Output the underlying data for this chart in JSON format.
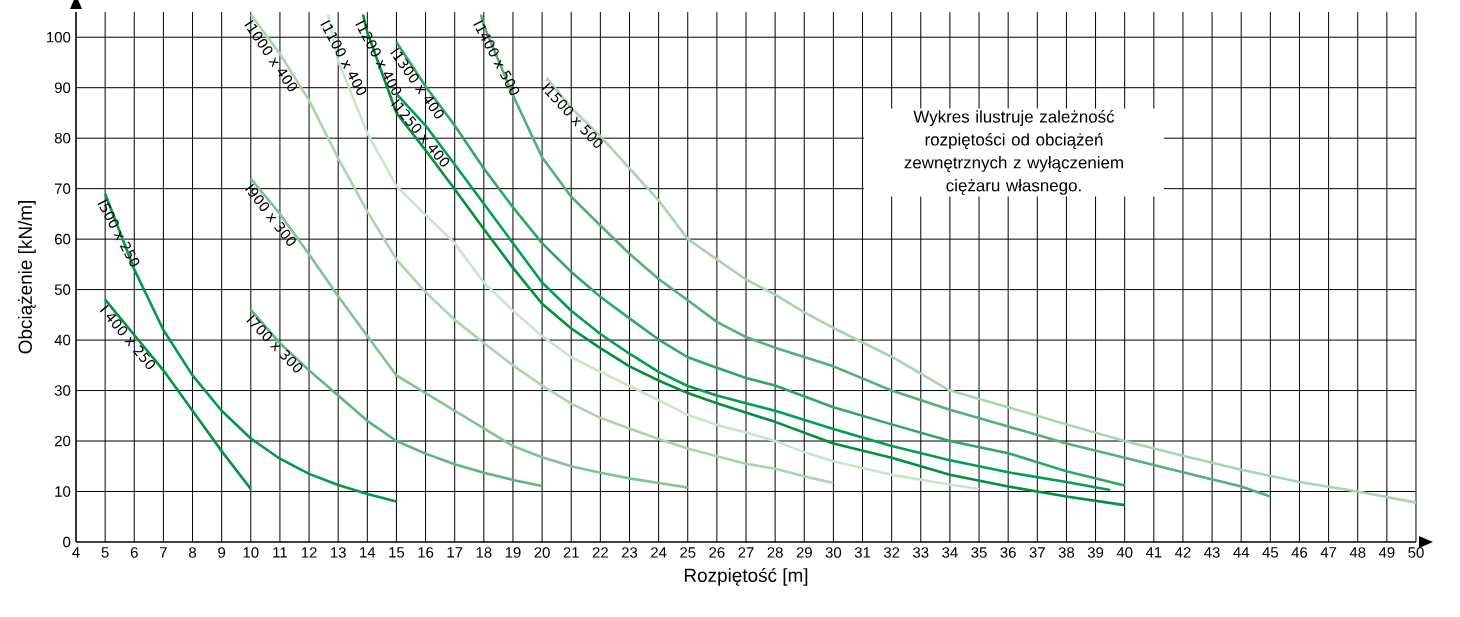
{
  "chart_data": {
    "type": "line",
    "xlabel": "Rozpiętość [m]",
    "ylabel": "Obciążenie [kN/m]",
    "xlim": [
      4,
      50
    ],
    "ylim": [
      0,
      105
    ],
    "xticks": [
      4,
      5,
      6,
      7,
      8,
      9,
      10,
      11,
      12,
      13,
      14,
      15,
      16,
      17,
      18,
      19,
      20,
      21,
      22,
      23,
      24,
      25,
      26,
      27,
      28,
      29,
      30,
      31,
      32,
      33,
      34,
      35,
      36,
      37,
      38,
      39,
      40,
      41,
      42,
      43,
      44,
      45,
      46,
      47,
      48,
      49,
      50
    ],
    "yticks": [
      0,
      10,
      20,
      30,
      40,
      50,
      60,
      70,
      80,
      90,
      100
    ],
    "grid": true,
    "annotations": [
      "Wykres ilustruje zależność rozpiętości od obciążeń zewnętrznych z wyłączeniem ciężaru własnego."
    ],
    "series": [
      {
        "name": "I 400 x 250",
        "color": "#00963f",
        "x": [
          5,
          6,
          7,
          8,
          9,
          10
        ],
        "values": [
          48,
          41,
          34,
          26,
          18,
          10.5
        ]
      },
      {
        "name": "I500 x 250",
        "color": "#009a48",
        "x": [
          5,
          6,
          7,
          8,
          9,
          10,
          11,
          12,
          13,
          14,
          15
        ],
        "values": [
          69,
          54,
          42,
          33,
          26,
          20.5,
          16.5,
          13.5,
          11.3,
          9.5,
          8
        ]
      },
      {
        "name": "I700 x 300",
        "color": "#5cb87a",
        "x": [
          10,
          11,
          12,
          13,
          14,
          15,
          16,
          17,
          18,
          19,
          20
        ],
        "values": [
          46,
          39.4,
          34,
          29,
          24,
          20,
          17.5,
          15.4,
          13.7,
          12.3,
          11.1
        ]
      },
      {
        "name": "I900 x 300",
        "color": "#7ec592",
        "x": [
          10,
          11,
          12,
          13,
          14,
          15,
          16,
          17,
          18,
          19,
          20,
          21,
          22,
          23,
          24,
          25
        ],
        "values": [
          72,
          65,
          57,
          48.7,
          40.8,
          33,
          29.5,
          26,
          22.5,
          19,
          16.8,
          15,
          13.7,
          12.6,
          11.7,
          10.8
        ]
      },
      {
        "name": "I1000 x 400",
        "color": "#a7d5b0",
        "x": [
          10,
          11,
          12,
          13,
          14,
          15,
          16,
          17,
          18,
          19,
          20,
          21,
          22,
          23,
          24,
          25,
          26,
          27,
          28,
          29,
          30
        ],
        "values": [
          104.5,
          96.7,
          87.5,
          76,
          65.5,
          56,
          49.5,
          44,
          39.4,
          35,
          31,
          27.4,
          24.6,
          22.5,
          20.4,
          18.5,
          17,
          15.5,
          14.5,
          13,
          11.7
        ]
      },
      {
        "name": "I1100 x 400",
        "color": "#c8e6cc",
        "x": [
          12.65,
          13,
          14,
          15,
          16,
          17,
          18,
          19,
          20,
          21,
          22,
          23,
          24,
          25,
          26,
          27,
          28,
          29,
          30,
          32,
          34,
          35
        ],
        "values": [
          104.5,
          95.3,
          81,
          70.5,
          64.8,
          59.2,
          51.4,
          45.8,
          40.8,
          36.6,
          33.7,
          30.9,
          28.1,
          25.2,
          23.2,
          21.7,
          20,
          17.8,
          16,
          13.3,
          11.4,
          10.5
        ]
      },
      {
        "name": "I1200 x 400",
        "color": "#00913c",
        "x": [
          13.85,
          14,
          15,
          16,
          17,
          18,
          19,
          20,
          21,
          22,
          23,
          24,
          25,
          26,
          28,
          30,
          32,
          34,
          36,
          38,
          40
        ],
        "values": [
          104.5,
          101,
          85,
          77.6,
          69.9,
          62,
          54.3,
          47.2,
          42.3,
          38.4,
          34.8,
          32,
          29.5,
          27.5,
          23.8,
          19.5,
          16.7,
          13.3,
          11,
          9,
          7.3
        ]
      },
      {
        "name": "I1250 x 400",
        "color": "#00a050",
        "x": [
          15,
          16,
          17,
          18,
          19,
          20,
          21,
          22,
          23,
          24,
          25,
          26,
          27,
          28,
          30,
          32,
          34,
          36,
          38,
          39.5
        ],
        "values": [
          88.8,
          82.5,
          74.8,
          67,
          59.2,
          51.4,
          45.8,
          41.2,
          37.3,
          33.7,
          30.9,
          29,
          27.5,
          26,
          22.4,
          19,
          16.2,
          13.8,
          11.9,
          10.3
        ]
      },
      {
        "name": "I1300 x 400",
        "color": "#2fa862",
        "x": [
          15,
          16,
          17,
          18,
          19,
          20,
          21,
          22,
          23,
          24,
          25,
          26,
          27,
          28,
          30,
          32,
          34,
          36,
          38,
          40
        ],
        "values": [
          99,
          90.3,
          82.5,
          74,
          66.3,
          59.2,
          53.5,
          48.6,
          44.3,
          40.1,
          36.6,
          34.5,
          32.5,
          31,
          26.7,
          23.3,
          20,
          17.6,
          14,
          11.2
        ]
      },
      {
        "name": "I1400 x 500",
        "color": "#52b272",
        "x": [
          17.9,
          18,
          19,
          20,
          21,
          22,
          23,
          24,
          25,
          26,
          27,
          28,
          30,
          32,
          34,
          36,
          38,
          40,
          42,
          44,
          45
        ],
        "values": [
          104.5,
          102.3,
          88.5,
          76.2,
          68.4,
          62.7,
          57.1,
          52.1,
          47.9,
          43.6,
          40.6,
          38.5,
          34.8,
          30,
          26.2,
          22.9,
          19.5,
          16.7,
          13.8,
          11,
          9
        ]
      },
      {
        "name": "I1500 x 500",
        "color": "#a6d6b0",
        "x": [
          20.15,
          21,
          22,
          23,
          24,
          25,
          26,
          27,
          28,
          29,
          30,
          32,
          34,
          36,
          38,
          40,
          42,
          44,
          46,
          48,
          50
        ],
        "values": [
          92,
          86,
          80.4,
          74,
          67.7,
          60,
          56,
          52,
          49,
          45.5,
          42.4,
          36.7,
          30,
          26.7,
          23.3,
          20,
          17.1,
          14.3,
          11.9,
          10,
          7.8
        ]
      }
    ]
  }
}
